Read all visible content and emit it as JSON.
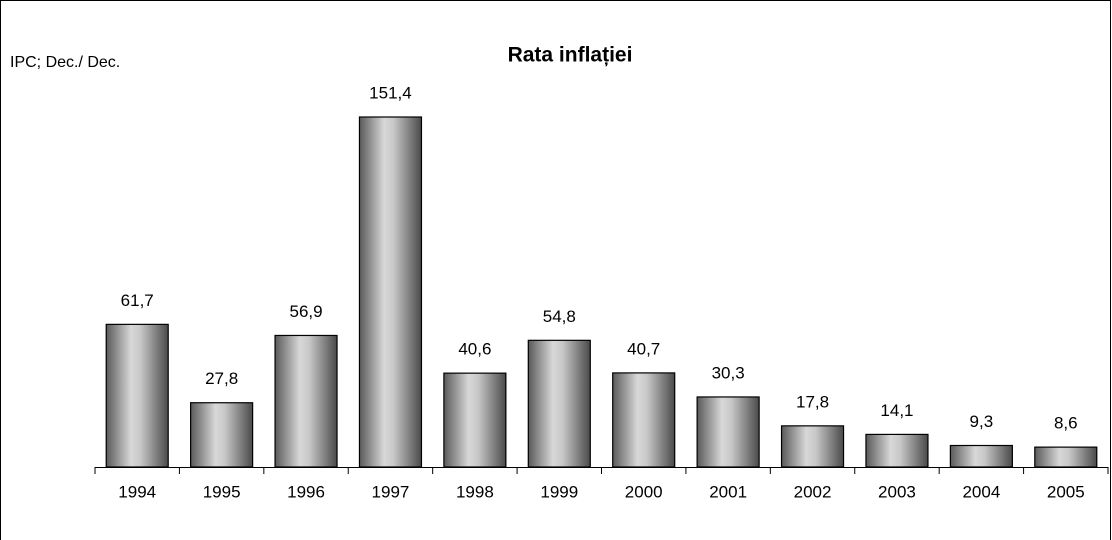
{
  "chart_data": {
    "type": "bar",
    "title": "Rata inflației",
    "subtitle": "IPC;  Dec./ Dec.",
    "categories": [
      "1994",
      "1995",
      "1996",
      "1997",
      "1998",
      "1999",
      "2000",
      "2001",
      "2002",
      "2003",
      "2004",
      "2005"
    ],
    "values": [
      61.7,
      27.8,
      56.9,
      151.4,
      40.6,
      54.8,
      40.7,
      30.3,
      17.8,
      14.1,
      9.3,
      8.6
    ],
    "value_labels": [
      "61,7",
      "27,8",
      "56,9",
      "151,4",
      "40,6",
      "54,8",
      "40,7",
      "30,3",
      "17,8",
      "14,1",
      "9,3",
      "8,6"
    ],
    "color": "#a6a6a6"
  }
}
